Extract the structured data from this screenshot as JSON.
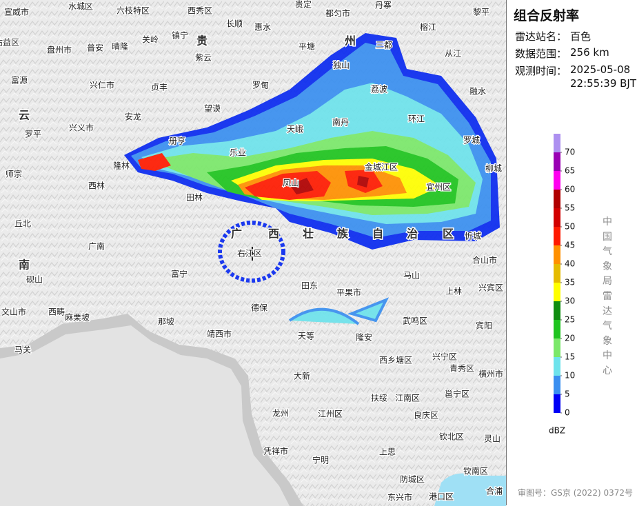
{
  "panel": {
    "title": "组合反射率",
    "station_label": "雷达站名：",
    "station": "百色",
    "range_label": "数据范围：",
    "range": "256 km",
    "time_label": "观测时间：",
    "date": "2025-05-08",
    "time": "22:55:39 BJT",
    "source": "中国气象局雷达气象中心",
    "approval": "审图号：GS京 (2022) 0372号"
  },
  "legend": {
    "unit": "dBZ",
    "ticks": [
      0,
      5,
      10,
      15,
      20,
      25,
      30,
      35,
      40,
      45,
      50,
      55,
      60,
      65,
      70
    ],
    "colors": [
      "#0000f6",
      "#3a8ff0",
      "#6ee3ec",
      "#7be86a",
      "#1fc41f",
      "#108d10",
      "#ffff00",
      "#e5bb00",
      "#ff9000",
      "#ff1a00",
      "#d20000",
      "#b00000",
      "#ff00f0",
      "#9a00b4",
      "#ad90f0"
    ]
  },
  "provinces": [
    "贵",
    "州",
    "云",
    "南",
    "广",
    "西",
    "壮",
    "族",
    "自",
    "治",
    "区"
  ],
  "places": [
    "宣威市",
    "水城区",
    "六枝特区",
    "西秀区",
    "贵定",
    "都匀市",
    "丹寨",
    "黎平",
    "沾益区",
    "盘州市",
    "普安",
    "晴隆",
    "关岭",
    "镇宁",
    "长顺",
    "惠水",
    "平塘",
    "三都",
    "榕江",
    "从江",
    "紫云",
    "富源",
    "兴仁市",
    "贞丰",
    "罗甸",
    "独山",
    "荔波",
    "融水",
    "兴义市",
    "安龙",
    "望谟",
    "天峨",
    "南丹",
    "环江",
    "罗平",
    "册亨",
    "乐业",
    "金城江区",
    "罗城",
    "柳城",
    "师宗",
    "隆林",
    "西林",
    "凤山",
    "宜州区",
    "田林",
    "丘北",
    "广南",
    "右江区",
    "忻城",
    "合山市",
    "富宁",
    "砚山",
    "田东",
    "马山",
    "兴宾区",
    "平果市",
    "上林",
    "文山市",
    "西畴",
    "麻栗坡",
    "那坡",
    "德保",
    "武鸣区",
    "宾阳",
    "靖西市",
    "天等",
    "隆安",
    "马关",
    "西乡塘区",
    "兴宁区",
    "青秀区",
    "横州市",
    "大新",
    "扶绥",
    "江南区",
    "邕宁区",
    "龙州",
    "江州区",
    "良庆区",
    "灵山",
    "钦北区",
    "凭祥市",
    "宁明",
    "上思",
    "防城区",
    "钦南区",
    "东兴市",
    "港口区",
    "合浦"
  ]
}
